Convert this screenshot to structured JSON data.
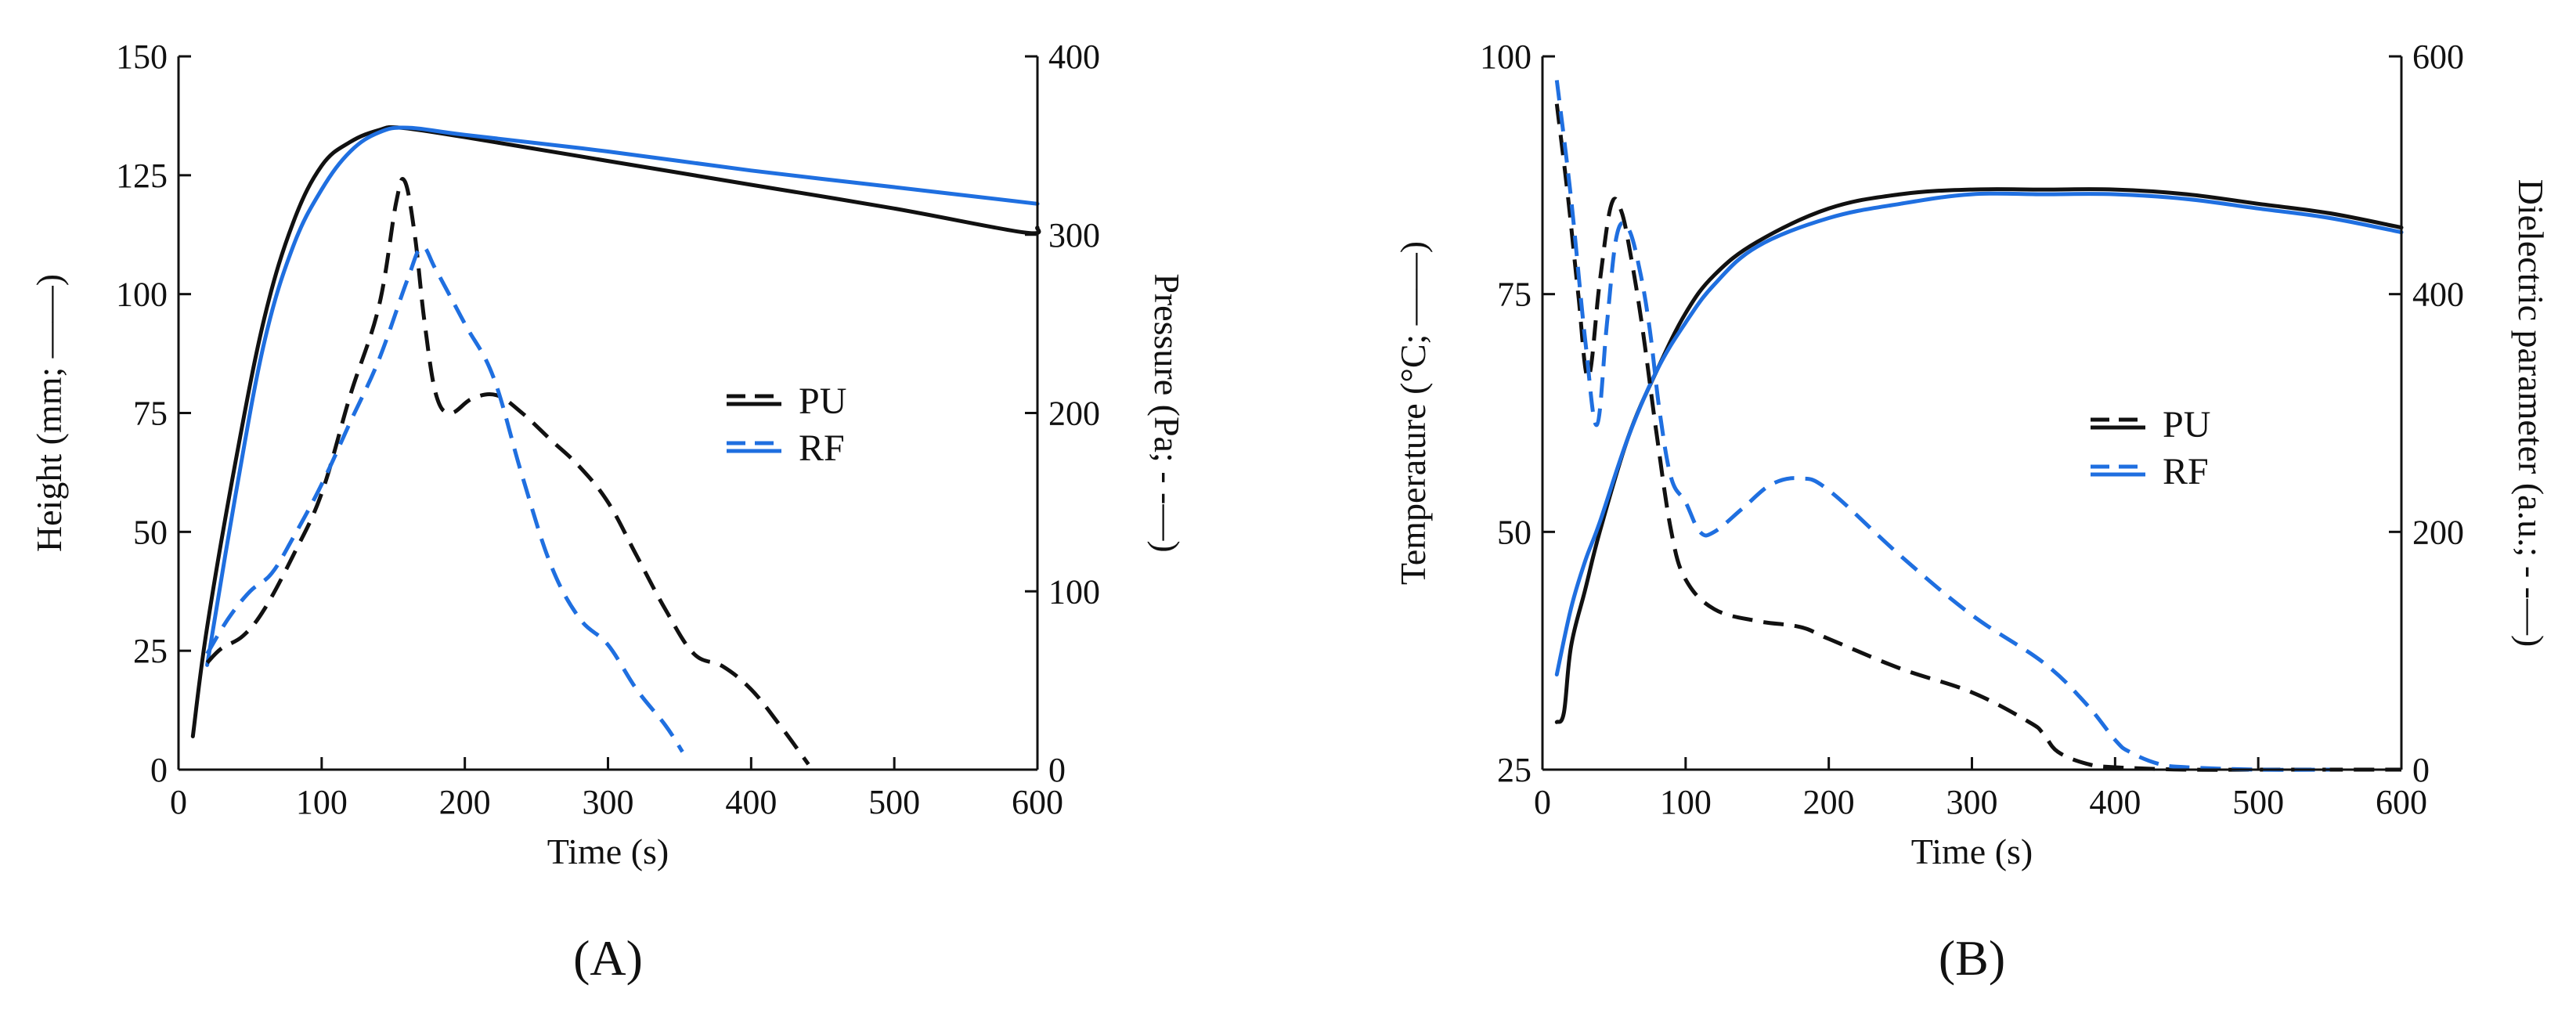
{
  "colors": {
    "PU": "#111111",
    "RF": "#1f6fe0",
    "axis": "#111111"
  },
  "chart_data": [
    {
      "panel": "(A)",
      "type": "line",
      "xlabel": "Time (s)",
      "ylabel_left": "Height (mm; ——)",
      "ylabel_right": "Pressure (Pa; - -—)",
      "xlim": [
        0,
        600
      ],
      "ylim_left": [
        0,
        150
      ],
      "ylim_right": [
        0,
        400
      ],
      "x_ticks": [
        "0",
        "100",
        "200",
        "300",
        "400",
        "500",
        "600"
      ],
      "y_ticks_left": [
        "0",
        "25",
        "50",
        "75",
        "100",
        "125",
        "150"
      ],
      "y_ticks_right": [
        "0",
        "100",
        "200",
        "300",
        "400"
      ],
      "legend": [
        "PU",
        "RF"
      ],
      "series": [
        {
          "name": "PU",
          "style": "solid",
          "axis": "left",
          "x": [
            10,
            20,
            40,
            60,
            80,
            100,
            120,
            140,
            155,
            200,
            300,
            400,
            500,
            590,
            600
          ],
          "y": [
            7,
            30,
            65,
            95,
            115,
            127,
            132,
            134.5,
            135,
            133,
            128,
            123,
            118,
            113,
            114
          ]
        },
        {
          "name": "RF",
          "style": "solid",
          "axis": "left",
          "x": [
            20,
            40,
            60,
            80,
            100,
            120,
            140,
            160,
            200,
            300,
            400,
            500,
            600
          ],
          "y": [
            22,
            58,
            90,
            110,
            122,
            130,
            134,
            135,
            133.5,
            130,
            126,
            122.5,
            119
          ]
        },
        {
          "name": "PU",
          "style": "dashed",
          "axis": "right",
          "x": [
            20,
            30,
            45,
            60,
            80,
            100,
            120,
            140,
            152,
            158,
            165,
            172,
            180,
            190,
            205,
            222,
            240,
            260,
            280,
            300,
            320,
            340,
            360,
            380,
            400,
            420,
            440
          ],
          "y": [
            60,
            68,
            75,
            90,
            120,
            155,
            210,
            260,
            318,
            330,
            300,
            250,
            210,
            200,
            208,
            210,
            200,
            185,
            170,
            150,
            120,
            90,
            65,
            58,
            45,
            25,
            3
          ]
        },
        {
          "name": "RF",
          "style": "dashed",
          "axis": "right",
          "x": [
            20,
            35,
            50,
            65,
            80,
            100,
            120,
            140,
            160,
            170,
            180,
            200,
            220,
            240,
            260,
            280,
            300,
            320,
            340,
            352
          ],
          "y": [
            65,
            85,
            100,
            110,
            130,
            160,
            195,
            230,
            275,
            293,
            280,
            250,
            220,
            165,
            115,
            85,
            70,
            45,
            25,
            10
          ]
        }
      ]
    },
    {
      "panel": "(B)",
      "type": "line",
      "xlabel": "Time (s)",
      "ylabel_left": "Temperature (°C; ——)",
      "ylabel_right": "Dielectric parameter (a.u.; - -—)",
      "xlim": [
        0,
        600
      ],
      "ylim_left": [
        25,
        100
      ],
      "ylim_right": [
        0,
        600
      ],
      "x_ticks": [
        "0",
        "100",
        "200",
        "300",
        "400",
        "500",
        "600"
      ],
      "y_ticks_left": [
        "25",
        "50",
        "75",
        "100"
      ],
      "y_ticks_right": [
        "0",
        "200",
        "400",
        "600"
      ],
      "legend": [
        "PU",
        "RF"
      ],
      "series": [
        {
          "name": "PU",
          "style": "solid",
          "axis": "left",
          "x": [
            10,
            15,
            20,
            30,
            40,
            60,
            80,
            100,
            120,
            150,
            200,
            250,
            300,
            350,
            400,
            450,
            500,
            550,
            600
          ],
          "y": [
            30,
            31,
            38,
            44,
            50,
            60,
            67,
            73,
            77,
            80.5,
            84,
            85.5,
            86,
            86,
            86,
            85.5,
            84.5,
            83.5,
            82
          ]
        },
        {
          "name": "RF",
          "style": "solid",
          "axis": "left",
          "x": [
            10,
            20,
            30,
            40,
            60,
            80,
            100,
            120,
            150,
            200,
            250,
            300,
            350,
            400,
            450,
            500,
            550,
            600
          ],
          "y": [
            35,
            42,
            47,
            51,
            60,
            67,
            72,
            76,
            80,
            83,
            84.5,
            85.5,
            85.5,
            85.5,
            85,
            84,
            83,
            81.5
          ]
        },
        {
          "name": "PU",
          "style": "dashed",
          "axis": "right",
          "x": [
            10,
            18,
            25,
            32,
            40,
            48,
            55,
            62,
            70,
            80,
            90,
            100,
            120,
            150,
            180,
            200,
            250,
            300,
            340,
            350,
            360,
            380,
            400,
            450,
            500,
            550,
            600
          ],
          "y": [
            560,
            480,
            400,
            330,
            410,
            475,
            470,
            430,
            370,
            280,
            200,
            160,
            135,
            125,
            120,
            110,
            85,
            65,
            40,
            30,
            15,
            5,
            2,
            0,
            0,
            0,
            0
          ]
        },
        {
          "name": "RF",
          "style": "dashed",
          "axis": "right",
          "x": [
            10,
            20,
            30,
            38,
            45,
            52,
            60,
            68,
            75,
            82,
            90,
            100,
            110,
            120,
            140,
            160,
            180,
            200,
            250,
            300,
            350,
            380,
            400,
            410,
            430,
            450,
            500,
            550
          ],
          "y": [
            580,
            480,
            360,
            290,
            375,
            450,
            455,
            420,
            370,
            300,
            245,
            225,
            200,
            200,
            220,
            240,
            245,
            235,
            180,
            130,
            90,
            55,
            25,
            15,
            5,
            2,
            0,
            0
          ]
        }
      ]
    }
  ]
}
